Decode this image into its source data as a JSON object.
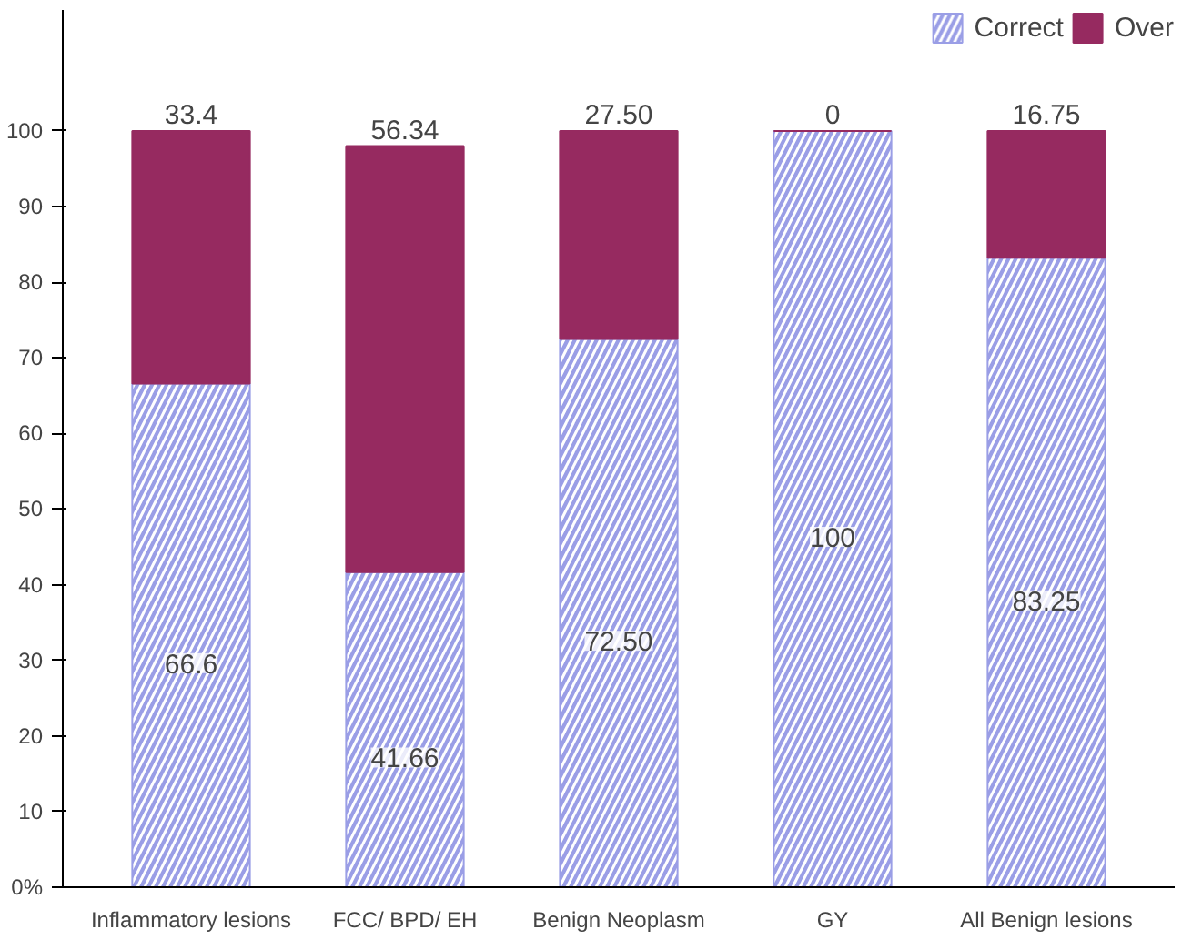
{
  "chart_data": {
    "type": "bar",
    "stacked": true,
    "categories": [
      "Inflammatory lesions",
      "FCC/ BPD/ EH",
      "Benign Neoplasm",
      "GY",
      "All Benign lesions"
    ],
    "series": [
      {
        "name": "Correct",
        "color": "#9a9ee6",
        "values": [
          66.6,
          41.66,
          72.5,
          100,
          83.25
        ],
        "value_labels": [
          "66.6",
          "41.66",
          "72.50",
          "100",
          "83.25"
        ]
      },
      {
        "name": "Over",
        "color": "#962a60",
        "values": [
          33.4,
          56.34,
          27.5,
          0,
          16.75
        ],
        "value_labels": [
          "33.4",
          "56.34",
          "27.50",
          "0",
          "16.75"
        ]
      }
    ],
    "ylim": [
      0,
      116
    ],
    "yticks": [
      {
        "value": 0,
        "label": "0%"
      },
      10,
      20,
      30,
      40,
      50,
      60,
      70,
      80,
      90,
      100
    ],
    "grid": false,
    "legend": "top right"
  }
}
